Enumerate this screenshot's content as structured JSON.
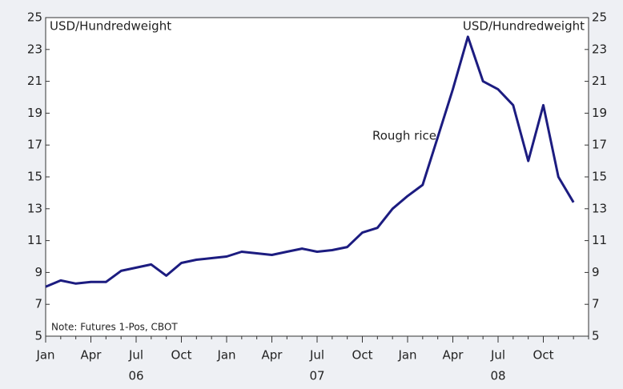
{
  "chart_data": {
    "type": "line",
    "left_axis_label": "USD/Hundredweight",
    "right_axis_label": "USD/Hundredweight",
    "note": "Note: Futures 1-Pos, CBOT",
    "x": [
      "2006-01",
      "2006-02",
      "2006-03",
      "2006-04",
      "2006-05",
      "2006-06",
      "2006-07",
      "2006-08",
      "2006-09",
      "2006-10",
      "2006-11",
      "2006-12",
      "2007-01",
      "2007-02",
      "2007-03",
      "2007-04",
      "2007-05",
      "2007-06",
      "2007-07",
      "2007-08",
      "2007-09",
      "2007-10",
      "2007-11",
      "2007-12",
      "2008-01",
      "2008-02",
      "2008-03",
      "2008-04",
      "2008-05",
      "2008-06",
      "2008-07",
      "2008-08",
      "2008-09",
      "2008-10",
      "2008-11",
      "2008-12"
    ],
    "series": [
      {
        "name": "Rough rice",
        "color": "#1c1c80",
        "values": [
          8.1,
          8.5,
          8.3,
          8.4,
          8.4,
          9.1,
          9.3,
          9.5,
          8.8,
          9.6,
          9.8,
          9.9,
          10.0,
          10.3,
          10.2,
          10.1,
          10.3,
          10.5,
          10.3,
          10.4,
          10.6,
          11.5,
          11.8,
          13.0,
          13.8,
          14.5,
          17.5,
          20.5,
          23.8,
          21.0,
          20.5,
          19.5,
          16.0,
          19.5,
          15.0,
          13.4
        ]
      }
    ],
    "xlim": [
      "2006-01",
      "2009-01"
    ],
    "xticks": [
      {
        "value": "2006-01",
        "label": "Jan"
      },
      {
        "value": "2006-04",
        "label": "Apr"
      },
      {
        "value": "2006-07",
        "label": "Jul"
      },
      {
        "value": "2006-10",
        "label": "Oct"
      },
      {
        "value": "2007-01",
        "label": "Jan"
      },
      {
        "value": "2007-04",
        "label": "Apr"
      },
      {
        "value": "2007-07",
        "label": "Jul"
      },
      {
        "value": "2007-10",
        "label": "Oct"
      },
      {
        "value": "2008-01",
        "label": "Jan"
      },
      {
        "value": "2008-04",
        "label": "Apr"
      },
      {
        "value": "2008-07",
        "label": "Jul"
      },
      {
        "value": "2008-10",
        "label": "Oct"
      }
    ],
    "year_labels": [
      {
        "value": "2006-07",
        "label": "06"
      },
      {
        "value": "2007-07",
        "label": "07"
      },
      {
        "value": "2008-07",
        "label": "08"
      }
    ],
    "ylim": [
      5,
      25
    ],
    "yticks": [
      5,
      7,
      9,
      11,
      13,
      15,
      17,
      19,
      21,
      23,
      25
    ],
    "y2lim": [
      5,
      25
    ],
    "y2ticks": [
      5,
      7,
      9,
      11,
      13,
      15,
      17,
      19,
      21,
      23,
      25
    ]
  }
}
